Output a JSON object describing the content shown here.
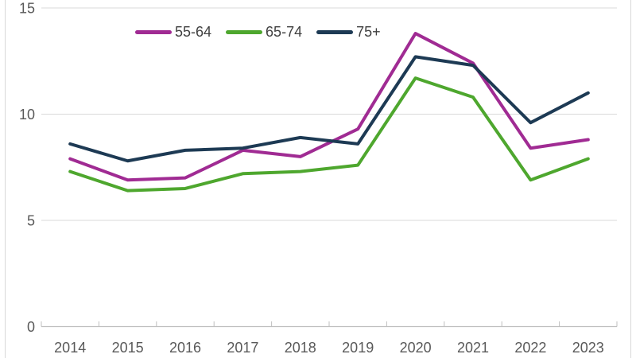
{
  "chart_data": {
    "type": "line",
    "title": "",
    "xlabel": "",
    "ylabel": "",
    "categories": [
      "2014",
      "2015",
      "2016",
      "2017",
      "2018",
      "2019",
      "2020",
      "2021",
      "2022",
      "2023"
    ],
    "series": [
      {
        "name": "55-64",
        "color": "#A02B93",
        "values": [
          7.9,
          6.9,
          7.0,
          8.3,
          8.0,
          9.3,
          13.8,
          12.4,
          8.4,
          8.8
        ]
      },
      {
        "name": "65-74",
        "color": "#4EA72E",
        "values": [
          7.3,
          6.4,
          6.5,
          7.2,
          7.3,
          7.6,
          11.7,
          10.8,
          6.9,
          7.9
        ]
      },
      {
        "name": "75+",
        "color": "#1D3A54",
        "values": [
          8.6,
          7.8,
          8.3,
          8.4,
          8.9,
          8.6,
          12.7,
          12.3,
          9.6,
          11.0
        ]
      }
    ],
    "ylim": [
      0,
      15
    ],
    "yticks": [
      0,
      5,
      10,
      15
    ],
    "grid": true,
    "legend_position": "top"
  },
  "colors": {
    "background": "#FFFFFF",
    "gridline": "#D9D9D9",
    "axis_line": "#BFBFBF",
    "tick_label": "#595959",
    "legend_text": "#404040",
    "chart_border": "#D9D9D9"
  }
}
